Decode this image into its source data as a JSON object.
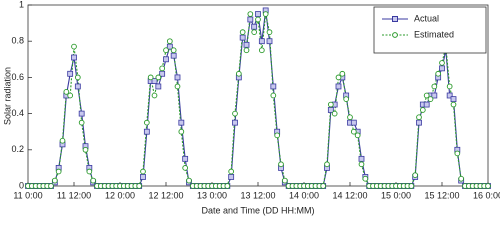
{
  "chart_data": {
    "type": "line",
    "xlabel": "Date and Time (DD HH:MM)",
    "ylabel": "Solar radiation",
    "categories": [
      "11 0:00",
      null,
      null,
      null,
      null,
      null,
      null,
      null,
      null,
      null,
      null,
      null,
      "11 12:00",
      null,
      null,
      null,
      null,
      null,
      null,
      null,
      null,
      null,
      null,
      null,
      "12 0:00",
      null,
      null,
      null,
      null,
      null,
      null,
      null,
      null,
      null,
      null,
      null,
      "12 12:00",
      null,
      null,
      null,
      null,
      null,
      null,
      null,
      null,
      null,
      null,
      null,
      "13 0:00",
      null,
      null,
      null,
      null,
      null,
      null,
      null,
      null,
      null,
      null,
      null,
      "13 12:00",
      null,
      null,
      null,
      null,
      null,
      null,
      null,
      null,
      null,
      null,
      null,
      "14 0:00",
      null,
      null,
      null,
      null,
      null,
      null,
      null,
      null,
      null,
      null,
      null,
      "14 12:00",
      null,
      null,
      null,
      null,
      null,
      null,
      null,
      null,
      null,
      null,
      null,
      "15 0:00",
      null,
      null,
      null,
      null,
      null,
      null,
      null,
      null,
      null,
      null,
      null,
      "15 12:00",
      null,
      null,
      null,
      null,
      null,
      null,
      null,
      null,
      null,
      null,
      null,
      "16 0:00"
    ],
    "series": [
      {
        "name": "Actual",
        "color": "#3a3aa0",
        "marker": "square",
        "values": [
          0,
          0,
          0,
          0,
          0,
          0,
          0,
          0.02,
          0.1,
          0.23,
          0.5,
          0.62,
          0.71,
          0.55,
          0.4,
          0.22,
          0.1,
          0.02,
          0,
          0,
          0,
          0,
          0,
          0,
          0,
          0,
          0,
          0,
          0,
          0,
          0.05,
          0.3,
          0.58,
          0.58,
          0.55,
          0.62,
          0.7,
          0.77,
          0.72,
          0.6,
          0.35,
          0.15,
          0.02,
          0,
          0,
          0,
          0,
          0,
          0,
          0,
          0,
          0,
          0,
          0.05,
          0.35,
          0.6,
          0.82,
          0.78,
          0.92,
          0.88,
          0.95,
          0.8,
          0.97,
          0.8,
          0.55,
          0.3,
          0.1,
          0.02,
          0,
          0,
          0,
          0,
          0,
          0,
          0,
          0,
          0,
          0,
          0.1,
          0.42,
          0.45,
          0.55,
          0.6,
          0.5,
          0.35,
          0.35,
          0.3,
          0.15,
          0.05,
          0,
          0,
          0,
          0,
          0,
          0,
          0,
          0,
          0,
          0,
          0,
          0,
          0.05,
          0.35,
          0.45,
          0.45,
          0.5,
          0.5,
          0.6,
          0.65,
          0.75,
          0.5,
          0.48,
          0.2,
          0.03,
          0,
          0,
          0,
          0,
          0,
          0,
          0
        ]
      },
      {
        "name": "Estimated",
        "color": "#2a9a2a",
        "marker": "circle",
        "dashed": true,
        "values": [
          0,
          0,
          0,
          0,
          0,
          0,
          0,
          0.03,
          0.08,
          0.25,
          0.52,
          0.5,
          0.77,
          0.6,
          0.35,
          0.2,
          0.08,
          0.03,
          0,
          0,
          0,
          0,
          0,
          0,
          0,
          0,
          0,
          0,
          0,
          0,
          0.08,
          0.35,
          0.6,
          0.5,
          0.6,
          0.65,
          0.75,
          0.8,
          0.75,
          0.55,
          0.3,
          0.1,
          0.03,
          0,
          0,
          0,
          0,
          0,
          0,
          0,
          0,
          0,
          0,
          0.08,
          0.4,
          0.62,
          0.85,
          0.75,
          0.95,
          0.85,
          0.92,
          0.75,
          0.95,
          0.85,
          0.5,
          0.28,
          0.12,
          0.03,
          0,
          0,
          0,
          0,
          0,
          0,
          0,
          0,
          0,
          0,
          0.12,
          0.45,
          0.4,
          0.6,
          0.62,
          0.48,
          0.38,
          0.3,
          0.28,
          0.12,
          0.04,
          0,
          0,
          0,
          0,
          0,
          0,
          0,
          0,
          0,
          0,
          0,
          0,
          0.06,
          0.38,
          0.42,
          0.5,
          0.48,
          0.55,
          0.62,
          0.68,
          0.77,
          0.55,
          0.45,
          0.18,
          0.04,
          0,
          0,
          0,
          0,
          0,
          0,
          0
        ]
      }
    ],
    "ylim": [
      0,
      1
    ],
    "yticks": [
      0,
      0.2,
      0.4,
      0.6,
      0.8,
      1
    ],
    "legend": "upper right"
  }
}
